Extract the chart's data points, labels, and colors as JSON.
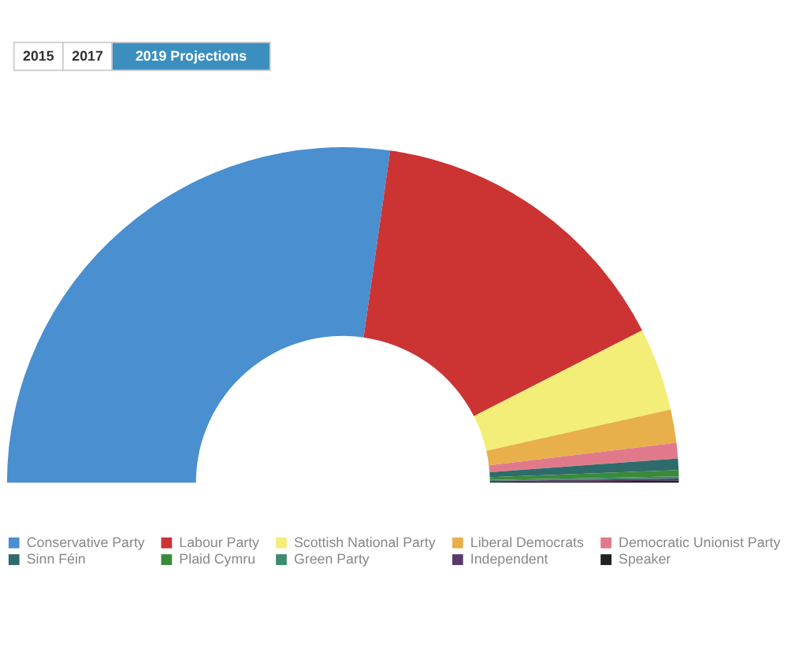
{
  "chart_data": {
    "type": "donut",
    "categories": [
      "Conservative Party",
      "Labour Party",
      "Scottish National Party",
      "Liberal Democrats",
      "Democratic Unionist Party",
      "Sinn Féin",
      "Plaid Cymru",
      "Green Party",
      "Independent",
      "Speaker"
    ],
    "values": [
      54.5,
      30.5,
      8.0,
      3.2,
      1.5,
      1.1,
      0.6,
      0.2,
      0.2,
      0.2
    ],
    "colors": [
      "#4a8fd0",
      "#cc3333",
      "#f2ee78",
      "#e8b04a",
      "#e07a8a",
      "#2e6b6b",
      "#3a8a3a",
      "#3e8a70",
      "#5a3a6a",
      "#222222"
    ],
    "annotations": [
      "2015",
      "2017",
      "2019 Projections"
    ],
    "legend": "bottom"
  }
}
